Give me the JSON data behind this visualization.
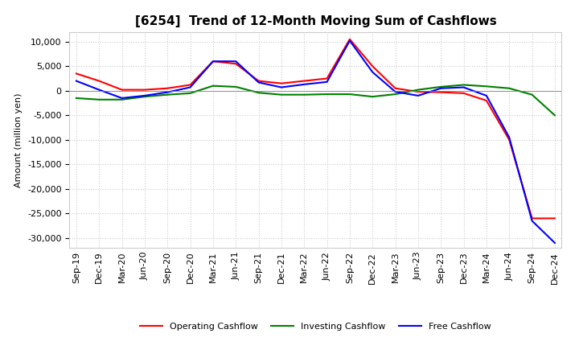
{
  "title": "[6254]  Trend of 12-Month Moving Sum of Cashflows",
  "ylabel": "Amount (million yen)",
  "x_labels": [
    "Sep-19",
    "Dec-19",
    "Mar-20",
    "Jun-20",
    "Sep-20",
    "Dec-20",
    "Mar-21",
    "Jun-21",
    "Sep-21",
    "Dec-21",
    "Mar-22",
    "Jun-22",
    "Sep-22",
    "Dec-22",
    "Mar-23",
    "Jun-23",
    "Sep-23",
    "Dec-23",
    "Mar-24",
    "Jun-24",
    "Sep-24",
    "Dec-24"
  ],
  "operating": [
    3500,
    2000,
    200,
    200,
    500,
    1200,
    6000,
    5500,
    2000,
    1500,
    2000,
    2500,
    10500,
    5000,
    500,
    -200,
    -300,
    -500,
    -2000,
    -10000,
    -26000,
    -26000
  ],
  "investing": [
    -1500,
    -1800,
    -1800,
    -1200,
    -800,
    -500,
    1000,
    800,
    -400,
    -800,
    -800,
    -700,
    -700,
    -1200,
    -700,
    200,
    800,
    1200,
    900,
    500,
    -800,
    -5000
  ],
  "free": [
    2000,
    200,
    -1500,
    -1000,
    -300,
    700,
    6000,
    6000,
    1700,
    700,
    1300,
    1800,
    10200,
    3800,
    -200,
    -1000,
    500,
    700,
    -1000,
    -9500,
    -26500,
    -31000
  ],
  "ylim": [
    -32000,
    12000
  ],
  "yticks": [
    10000,
    5000,
    0,
    -5000,
    -10000,
    -15000,
    -20000,
    -25000,
    -30000
  ],
  "operating_color": "#ff0000",
  "investing_color": "#008000",
  "free_color": "#0000ff",
  "background_color": "#ffffff",
  "grid_color": "#cccccc",
  "title_fontsize": 11,
  "label_fontsize": 8,
  "tick_fontsize": 8
}
